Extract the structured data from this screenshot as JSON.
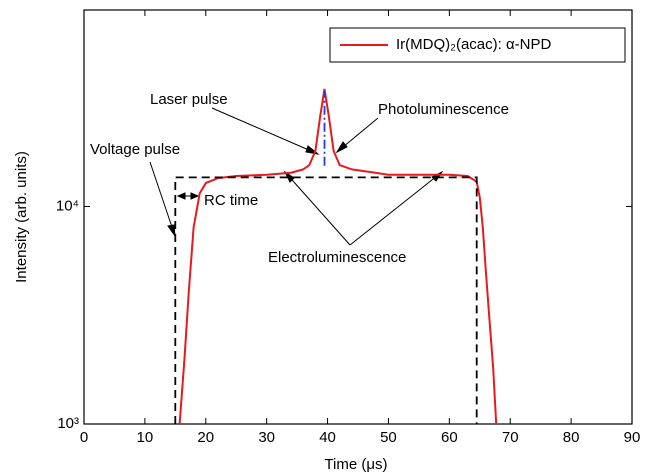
{
  "chart_data": {
    "type": "line",
    "x_label": "Time (μs)",
    "y_label": "Intensity (arb. units)",
    "xlim": [
      0,
      90
    ],
    "xticks": [
      0,
      10,
      20,
      30,
      40,
      50,
      60,
      70,
      80,
      90
    ],
    "ylim": [
      1000,
      80000
    ],
    "log_y": true,
    "yticks": [
      {
        "value": 1000,
        "label": "10³"
      },
      {
        "value": 10000,
        "label": "10⁴"
      }
    ],
    "legend": "upper right",
    "series": [
      {
        "name": "Ir(MDQ)₂(acac): α-NPD",
        "color": "#e8191f",
        "style": "solid",
        "x": [
          15.7,
          16.5,
          17.2,
          18,
          19,
          20,
          22,
          25,
          30,
          34,
          36,
          37,
          38,
          38.8,
          39.5,
          40.2,
          41,
          42,
          44,
          47,
          50,
          55,
          60,
          63,
          64.5,
          65,
          65.5,
          66,
          66.6,
          67.2,
          67.7
        ],
        "values": [
          1000,
          2000,
          4000,
          8000,
          11500,
          12800,
          13500,
          13800,
          14000,
          14300,
          14800,
          15500,
          18000,
          26000,
          34700,
          26000,
          18000,
          15500,
          14800,
          14400,
          14000,
          14000,
          14000,
          13800,
          13000,
          11000,
          8000,
          5000,
          3000,
          1800,
          1000
        ]
      },
      {
        "color": "#000000",
        "style": "dashed",
        "x": [
          15,
          15,
          64.5,
          64.5
        ],
        "values": [
          1000,
          13600,
          13600,
          1000
        ]
      },
      {
        "color": "#1f3fd8",
        "style": "dashdot",
        "x": [
          39.5,
          39.5
        ],
        "values": [
          15400,
          34000
        ]
      }
    ],
    "annotations": [
      "Laser pulse",
      "Photoluminescence",
      "Voltage pulse",
      "RC time",
      "Electroluminescence"
    ]
  }
}
